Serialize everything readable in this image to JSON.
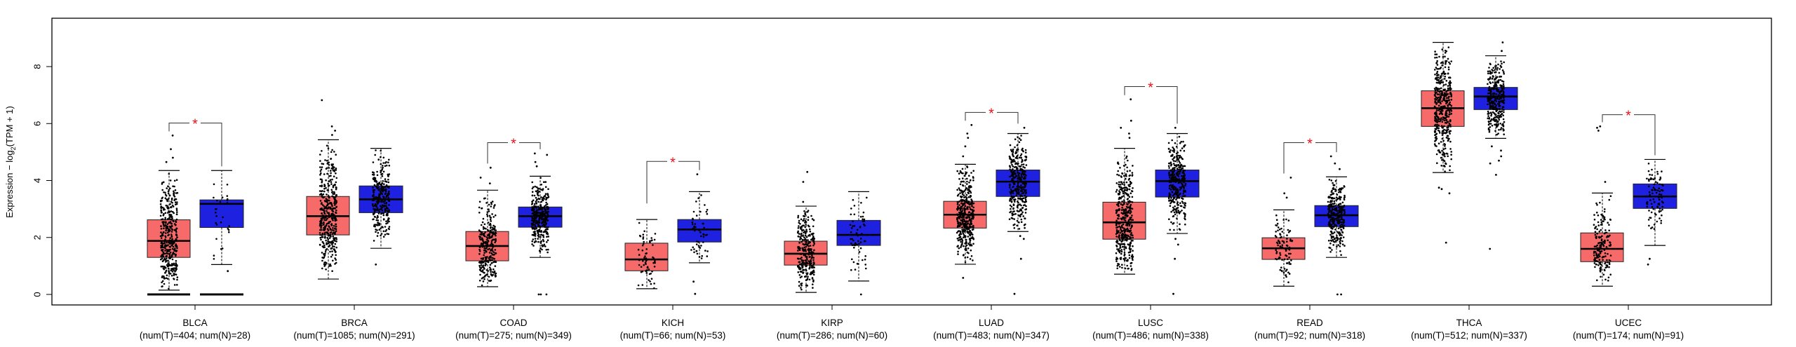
{
  "chart_data": {
    "type": "box",
    "title": "",
    "xlabel": "",
    "ylabel_main": "Expression − log",
    "ylabel_sub": "2",
    "ylabel_tail": "(TPM + 1)",
    "ylim": [
      -0.37,
      9.7
    ],
    "yticks": [
      0,
      2,
      4,
      6,
      8
    ],
    "grid": false,
    "legend": "none",
    "colors": {
      "tumor": "#F76A6A",
      "normal": "#1E22E0",
      "significance": "#E3121C",
      "points": "#000000"
    },
    "significance_symbol": "*",
    "categories": [
      {
        "name": "BLCA",
        "label": "(num(T)=404; num(N)=28)",
        "significant": true,
        "bracket": 6.02,
        "tumor": {
          "n": 404,
          "whislo": 0.15,
          "q1": 1.3,
          "median": 1.88,
          "q3": 2.62,
          "whishi": 4.35,
          "outliers": [
            4.65,
            4.8,
            5.1,
            5.58
          ],
          "zeros": true
        },
        "normal": {
          "n": 28,
          "whislo": 1.05,
          "q1": 2.35,
          "median": 3.18,
          "q3": 3.32,
          "whishi": 4.35,
          "outliers": [
            0.82
          ],
          "zeros": true
        }
      },
      {
        "name": "BRCA",
        "label": "(num(T)=1085; num(N)=291)",
        "significant": false,
        "tumor": {
          "n": 1085,
          "whislo": 0.54,
          "q1": 2.09,
          "median": 2.75,
          "q3": 3.44,
          "whishi": 5.43,
          "outliers": [
            5.6,
            5.75,
            5.9,
            6.82
          ]
        },
        "normal": {
          "n": 291,
          "whislo": 1.62,
          "q1": 2.87,
          "median": 3.34,
          "q3": 3.81,
          "whishi": 5.13,
          "outliers": [
            1.05
          ]
        }
      },
      {
        "name": "COAD",
        "label": "(num(T)=275; num(N)=349)",
        "significant": true,
        "bracket": 5.33,
        "tumor": {
          "n": 275,
          "whislo": 0.27,
          "q1": 1.18,
          "median": 1.7,
          "q3": 2.21,
          "whishi": 3.66,
          "outliers": [
            3.9,
            4.1,
            4.45
          ]
        },
        "normal": {
          "n": 349,
          "whislo": 1.3,
          "q1": 2.36,
          "median": 2.75,
          "q3": 3.07,
          "whishi": 4.15,
          "outliers": [
            4.5,
            4.65,
            4.9,
            4.95,
            0.0,
            0.0,
            0.0
          ]
        }
      },
      {
        "name": "KICH",
        "label": "(num(T)=66; num(N)=53)",
        "significant": true,
        "bracket": 4.67,
        "tumor": {
          "n": 66,
          "whislo": 0.2,
          "q1": 0.83,
          "median": 1.23,
          "q3": 1.8,
          "whishi": 2.63,
          "outliers": []
        },
        "normal": {
          "n": 53,
          "whislo": 1.11,
          "q1": 1.84,
          "median": 2.28,
          "q3": 2.63,
          "whishi": 3.61,
          "outliers": [
            4.22,
            0.45,
            0.02
          ]
        }
      },
      {
        "name": "KIRP",
        "label": "(num(T)=286; num(N)=60)",
        "significant": false,
        "tumor": {
          "n": 286,
          "whislo": 0.07,
          "q1": 1.03,
          "median": 1.43,
          "q3": 1.87,
          "whishi": 3.1,
          "outliers": [
            3.25,
            3.95,
            4.3
          ]
        },
        "normal": {
          "n": 60,
          "whislo": 0.47,
          "q1": 1.72,
          "median": 2.09,
          "q3": 2.6,
          "whishi": 3.61,
          "outliers": [
            0.0
          ]
        }
      },
      {
        "name": "LUAD",
        "label": "(num(T)=483; num(N)=347)",
        "significant": true,
        "bracket": 6.39,
        "tumor": {
          "n": 483,
          "whislo": 1.06,
          "q1": 2.33,
          "median": 2.8,
          "q3": 3.27,
          "whishi": 4.57,
          "outliers": [
            4.85,
            5.2,
            5.5,
            5.65,
            5.95,
            0.58
          ]
        },
        "normal": {
          "n": 347,
          "whislo": 2.21,
          "q1": 3.44,
          "median": 3.96,
          "q3": 4.37,
          "whishi": 5.65,
          "outliers": [
            5.85,
            2.05,
            1.95,
            1.25,
            0.02
          ]
        }
      },
      {
        "name": "LUSC",
        "label": "(num(T)=486; num(N)=338)",
        "significant": true,
        "bracket": 7.3,
        "tumor": {
          "n": 486,
          "whislo": 0.71,
          "q1": 1.94,
          "median": 2.53,
          "q3": 3.24,
          "whishi": 5.13,
          "outliers": [
            5.5,
            5.65,
            5.85,
            6.1,
            6.85
          ]
        },
        "normal": {
          "n": 338,
          "whislo": 2.14,
          "q1": 3.42,
          "median": 3.98,
          "q3": 4.37,
          "whishi": 5.65,
          "outliers": [
            5.85,
            1.95,
            1.75,
            1.25,
            0.02
          ]
        }
      },
      {
        "name": "READ",
        "label": "(num(T)=92; num(N)=318)",
        "significant": true,
        "bracket": 5.33,
        "tumor": {
          "n": 92,
          "whislo": 0.29,
          "q1": 1.23,
          "median": 1.62,
          "q3": 1.99,
          "whishi": 2.97,
          "outliers": [
            3.4,
            3.55,
            4.1
          ]
        },
        "normal": {
          "n": 318,
          "whislo": 1.3,
          "q1": 2.38,
          "median": 2.78,
          "q3": 3.12,
          "whishi": 4.13,
          "outliers": [
            4.4,
            4.6,
            4.85,
            0.0,
            0.0
          ]
        }
      },
      {
        "name": "THCA",
        "label": "(num(T)=512; num(N)=337)",
        "significant": false,
        "tumor": {
          "n": 512,
          "whislo": 4.28,
          "q1": 5.9,
          "median": 6.54,
          "q3": 7.15,
          "whishi": 8.85,
          "outliers": [
            3.75,
            3.7,
            3.55,
            1.82
          ]
        },
        "normal": {
          "n": 337,
          "whislo": 5.48,
          "q1": 6.49,
          "median": 6.95,
          "q3": 7.27,
          "whishi": 8.38,
          "outliers": [
            8.55,
            8.85,
            5.2,
            5.05,
            4.85,
            4.7,
            4.6,
            4.2,
            1.6
          ]
        }
      },
      {
        "name": "UCEC",
        "label": "(num(T)=174; num(N)=91)",
        "significant": true,
        "bracket": 6.31,
        "tumor": {
          "n": 174,
          "whislo": 0.29,
          "q1": 1.15,
          "median": 1.6,
          "q3": 2.16,
          "whishi": 3.56,
          "outliers": [
            3.95,
            5.75,
            5.85,
            5.9
          ]
        },
        "normal": {
          "n": 91,
          "whislo": 1.72,
          "q1": 3.02,
          "median": 3.44,
          "q3": 3.88,
          "whishi": 4.74,
          "outliers": [
            1.25,
            1.05
          ]
        }
      }
    ]
  }
}
